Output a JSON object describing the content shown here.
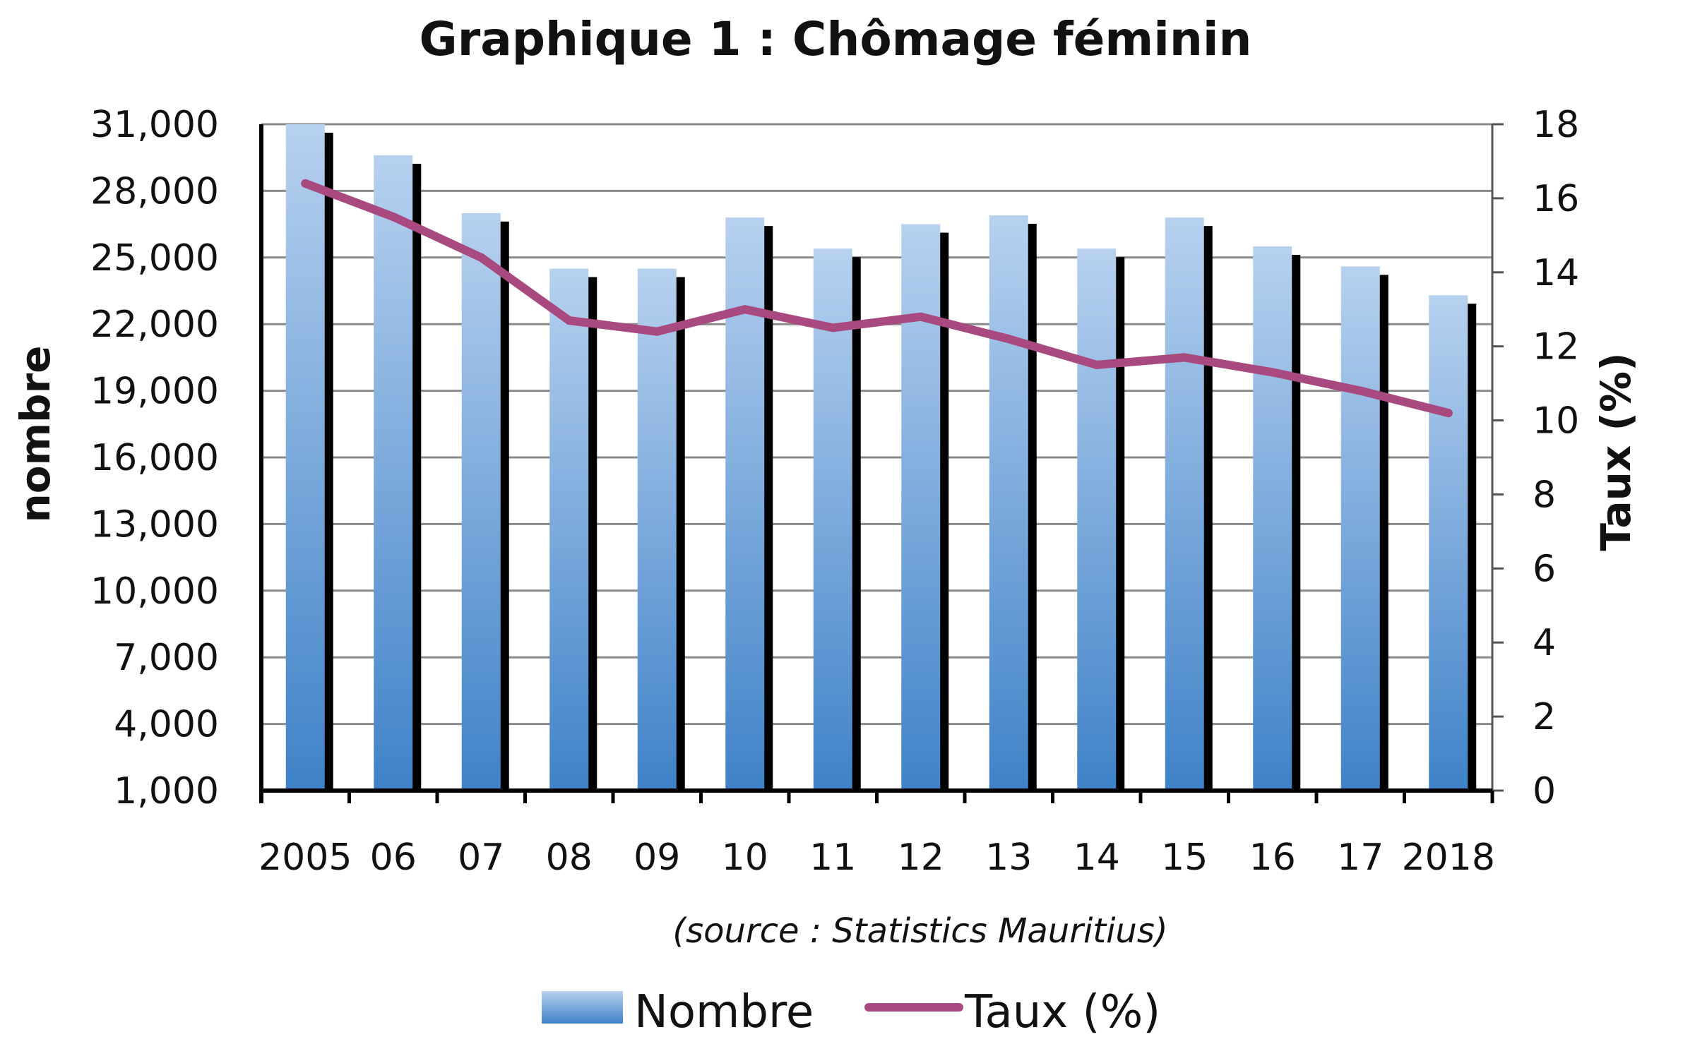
{
  "chart_data": {
    "type": "bar",
    "title": "Graphique 1 : Chômage féminin",
    "source": "(source : Statistics Mauritius)",
    "categories": [
      "2005",
      "06",
      "07",
      "08",
      "09",
      "10",
      "11",
      "12",
      "13",
      "14",
      "15",
      "16",
      "17",
      "2018"
    ],
    "y_left": {
      "label": "nombre",
      "range": [
        1000,
        31000
      ],
      "ticks": [
        "1,000",
        "4,000",
        "7,000",
        "10,000",
        "13,000",
        "16,000",
        "19,000",
        "22,000",
        "25,000",
        "28,000",
        "31,000"
      ]
    },
    "y_right": {
      "label": "Taux (%)",
      "range": [
        0,
        18
      ],
      "ticks": [
        "0",
        "2",
        "4",
        "6",
        "8",
        "10",
        "12",
        "14",
        "16",
        "18"
      ]
    },
    "series": [
      {
        "name": "Nombre",
        "type": "bar",
        "axis": "left",
        "color": "#6a9fd8",
        "values": [
          31000,
          29600,
          27000,
          24500,
          24500,
          26800,
          25400,
          26500,
          26900,
          25400,
          26800,
          25500,
          24600,
          23300
        ]
      },
      {
        "name": "Taux (%)",
        "type": "line",
        "axis": "right",
        "color": "#a84a7f",
        "values": [
          16.4,
          15.5,
          14.4,
          12.7,
          12.4,
          13.0,
          12.5,
          12.8,
          12.2,
          11.5,
          11.7,
          11.3,
          10.8,
          10.2
        ]
      }
    ],
    "grid": true,
    "legend_position": "bottom"
  }
}
